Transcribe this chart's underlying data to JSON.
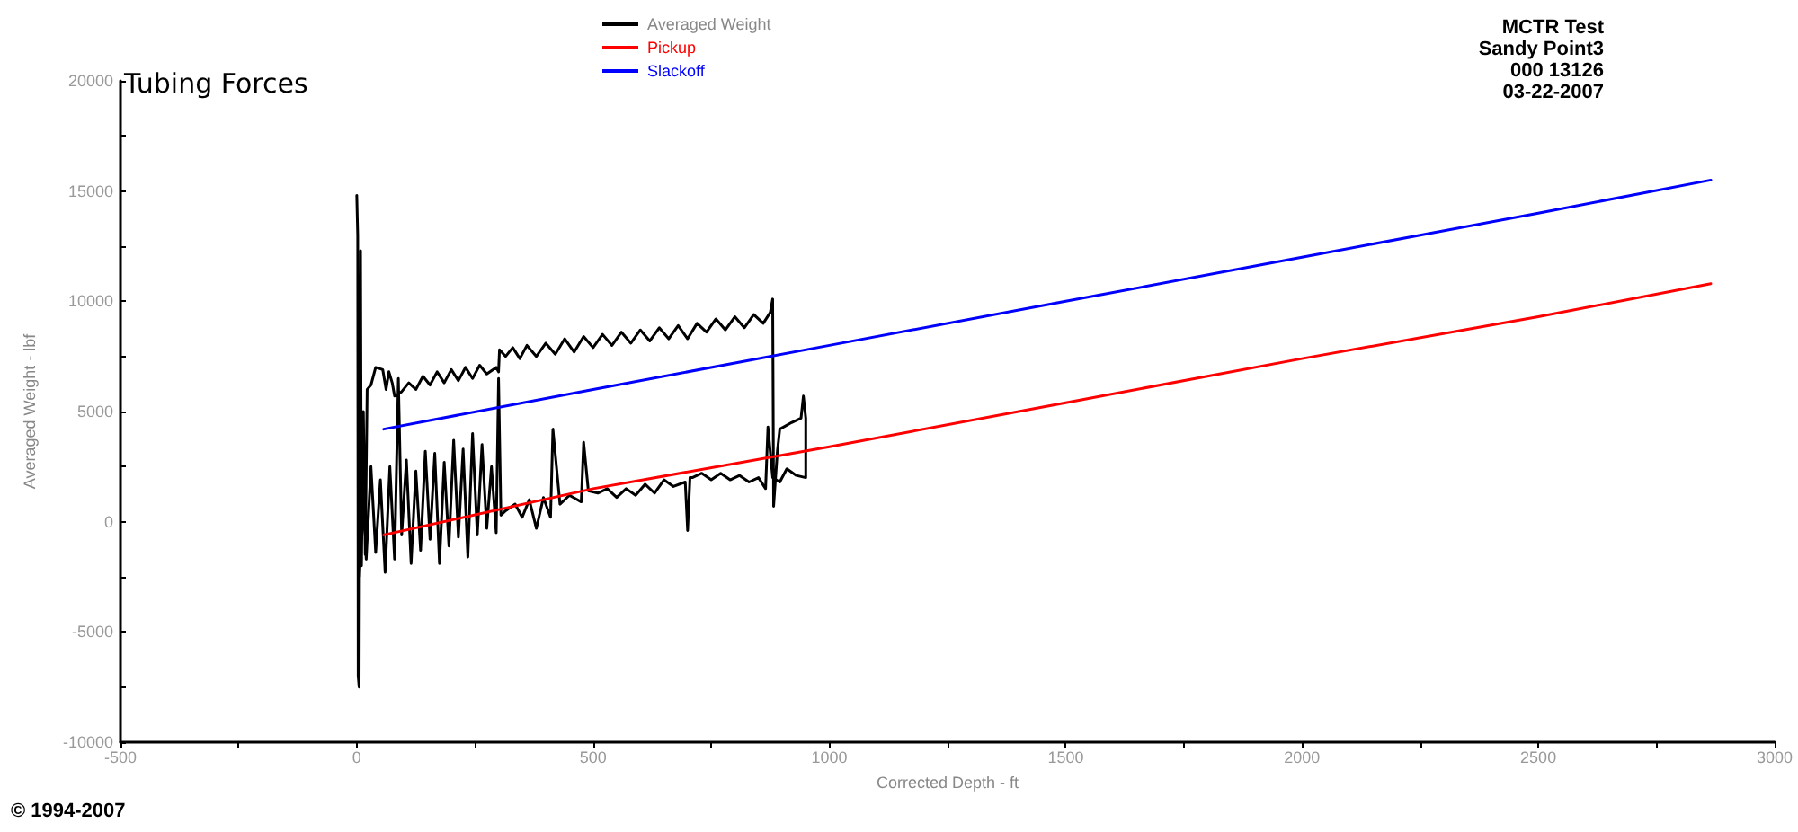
{
  "chart_data": {
    "type": "line",
    "title": "Tubing Forces",
    "xlabel": "Corrected Depth - ft",
    "ylabel": "Averaged Weight - lbf",
    "annotations": [
      "MCTR Test",
      "Sandy Point3",
      "000 13126",
      "03-22-2007",
      "© 1994-2007"
    ],
    "xlim": [
      -500,
      3000
    ],
    "xticks": [
      -500,
      {
        "value": -250,
        "label": null
      },
      0,
      {
        "value": 250,
        "label": null
      },
      500,
      {
        "value": 750,
        "label": null
      },
      1000,
      {
        "value": 1250,
        "label": null
      },
      1500,
      {
        "value": 1750,
        "label": null
      },
      2000,
      {
        "value": 2250,
        "label": null
      },
      2500,
      {
        "value": 2750,
        "label": null
      },
      3000
    ],
    "ylim": [
      -10000,
      20000
    ],
    "yticks": [
      -10000,
      {
        "value": -7500,
        "label": null
      },
      -5000,
      {
        "value": -2500,
        "label": null
      },
      0,
      {
        "value": 2500,
        "label": null
      },
      5000,
      {
        "value": 7500,
        "label": null
      },
      10000,
      {
        "value": 12500,
        "label": null
      },
      15000,
      {
        "value": 17500,
        "label": null
      },
      20000
    ],
    "grid": false,
    "legend": "top",
    "marker": "none",
    "series": [
      {
        "name": "Averaged Weight",
        "color": "#000000",
        "x": [
          0,
          2,
          3,
          5,
          8,
          10,
          14,
          18,
          22,
          30,
          40,
          55,
          62,
          68,
          75,
          80,
          95,
          110,
          125,
          140,
          155,
          170,
          185,
          200,
          215,
          230,
          245,
          260,
          275,
          295,
          300,
          302,
          315,
          330,
          345,
          360,
          380,
          400,
          420,
          440,
          460,
          480,
          500,
          520,
          540,
          560,
          580,
          600,
          620,
          640,
          660,
          680,
          700,
          720,
          740,
          760,
          780,
          800,
          820,
          840,
          860,
          875,
          880,
          882,
          890,
          895,
          920,
          940,
          945,
          950,
          950,
          930,
          910,
          895,
          880,
          870,
          865,
          850,
          830,
          810,
          790,
          770,
          750,
          730,
          710,
          705,
          700,
          695,
          670,
          650,
          630,
          610,
          590,
          570,
          550,
          530,
          510,
          490,
          480,
          475,
          450,
          430,
          415,
          410,
          395,
          380,
          365,
          350,
          335,
          315,
          305,
          300,
          295,
          285,
          275,
          265,
          255,
          245,
          235,
          225,
          215,
          205,
          195,
          185,
          175,
          165,
          155,
          145,
          135,
          125,
          115,
          105,
          95,
          88,
          80,
          70,
          60,
          50,
          40,
          30,
          20,
          12,
          6
        ],
        "values": [
          14800,
          13000,
          -7000,
          -7500,
          12300,
          -2000,
          5000,
          -1500,
          6000,
          6200,
          7000,
          6900,
          6000,
          6800,
          6300,
          5700,
          5900,
          6300,
          6000,
          6600,
          6200,
          6800,
          6300,
          6900,
          6400,
          7000,
          6500,
          7100,
          6700,
          7000,
          6800,
          7800,
          7500,
          7900,
          7400,
          8000,
          7500,
          8100,
          7600,
          8300,
          7700,
          8400,
          7900,
          8500,
          8000,
          8600,
          8100,
          8700,
          8200,
          8800,
          8300,
          8900,
          8300,
          9000,
          8600,
          9200,
          8700,
          9300,
          8800,
          9400,
          9000,
          9500,
          10100,
          700,
          3200,
          4200,
          4500,
          4700,
          5700,
          4700,
          2000,
          2100,
          2400,
          1800,
          2000,
          4300,
          1500,
          2000,
          1800,
          2100,
          1900,
          2200,
          1900,
          2200,
          2000,
          2000,
          -400,
          1800,
          1600,
          1900,
          1300,
          1700,
          1200,
          1500,
          1100,
          1500,
          1300,
          1400,
          3600,
          900,
          1200,
          800,
          4200,
          200,
          1100,
          -300,
          1000,
          200,
          800,
          500,
          300,
          6500,
          -500,
          2500,
          -300,
          3500,
          -600,
          4000,
          -1600,
          3300,
          -700,
          3700,
          -1100,
          2700,
          -1900,
          3100,
          -800,
          3200,
          -1300,
          2300,
          -1900,
          2800,
          -600,
          6500,
          -1700,
          2500,
          -2300,
          1900,
          -1400,
          2500,
          -1700,
          1500,
          -2500
        ]
      },
      {
        "name": "Pickup",
        "color": "#ff0000",
        "x": [
          57,
          500,
          1000,
          1500,
          2000,
          2500,
          2865
        ],
        "values": [
          -600,
          1500,
          3400,
          5400,
          7400,
          9300,
          10800
        ]
      },
      {
        "name": "Slackoff",
        "color": "#0000ff",
        "x": [
          57,
          500,
          1000,
          1500,
          2000,
          2500,
          2865
        ],
        "values": [
          4200,
          6000,
          8000,
          10000,
          12000,
          14000,
          15500
        ]
      }
    ]
  }
}
